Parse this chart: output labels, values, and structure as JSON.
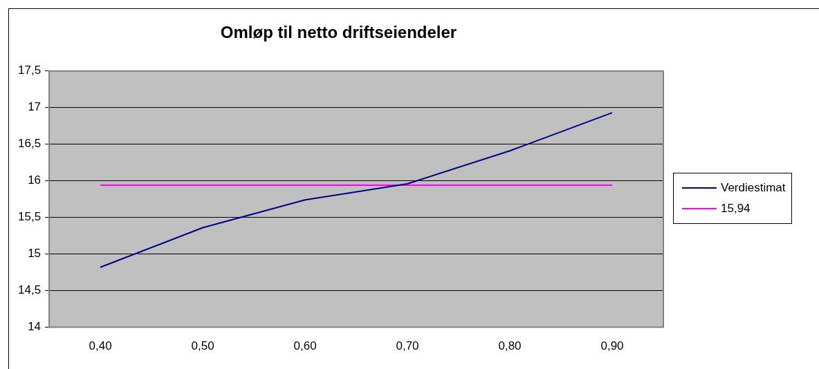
{
  "chart_data": {
    "type": "line",
    "title": "Omløp til netto driftseiendeler",
    "categories": [
      "0,40",
      "0,50",
      "0,60",
      "0,70",
      "0,80",
      "0,90"
    ],
    "series": [
      {
        "name": "Verdiestimat",
        "color": "#000080",
        "values": [
          14.82,
          15.36,
          15.74,
          15.96,
          16.41,
          16.93
        ]
      },
      {
        "name": "15,94",
        "color": "#ff00ff",
        "values": [
          15.94,
          15.94,
          15.94,
          15.94,
          15.94,
          15.94
        ]
      }
    ],
    "ylim": [
      14,
      17.5
    ],
    "yticks": [
      {
        "value": 14,
        "label": "14"
      },
      {
        "value": 14.5,
        "label": "14,5"
      },
      {
        "value": 15,
        "label": "15"
      },
      {
        "value": 15.5,
        "label": "15,5"
      },
      {
        "value": 16,
        "label": "16"
      },
      {
        "value": 16.5,
        "label": "16,5"
      },
      {
        "value": 17,
        "label": "17"
      },
      {
        "value": 17.5,
        "label": "17,5"
      }
    ],
    "grid": "y",
    "legend": "right",
    "marker": "none",
    "line_style": "solid"
  }
}
